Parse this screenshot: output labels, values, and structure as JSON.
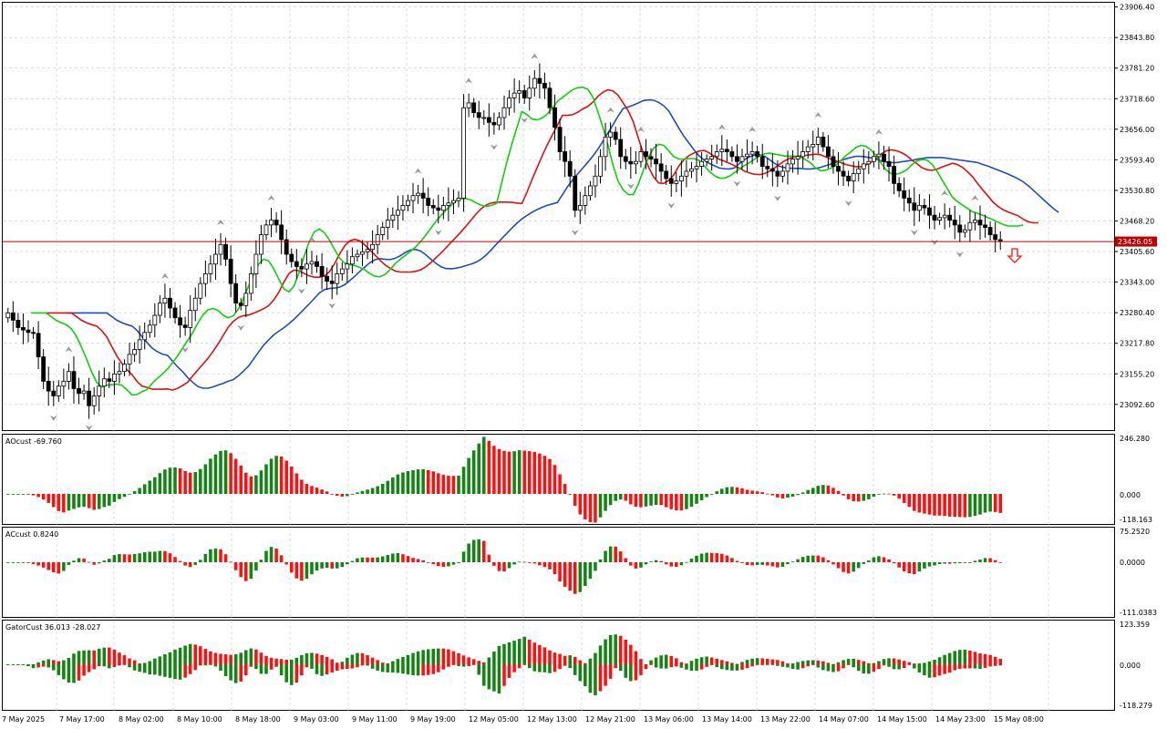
{
  "colors": {
    "background": "#ffffff",
    "grid": "#c8c8c8",
    "frame": "#000000",
    "bull_candle": "#ffffff",
    "bear_candle": "#000000",
    "alligator_jaw": "#1f4fbf",
    "alligator_teeth": "#e01010",
    "alligator_lips": "#10d010",
    "histogram_up": "#148414",
    "histogram_down": "#ff1010",
    "current_price_line": "#c00000",
    "current_price_tag": "#c00000",
    "fractal_marker": "#9a9a9a",
    "sell_arrow": "#ff2020"
  },
  "panels": {
    "main": {
      "type": "candlestick",
      "grid": true
    },
    "ao": {
      "label": "AOcust -69.760",
      "ticks": [
        "246.280",
        "0.000",
        "-118.163"
      ]
    },
    "ac": {
      "label": "ACcust 0.8240",
      "ticks": [
        "75.2520",
        "0.0000",
        "-111.0383"
      ]
    },
    "gator": {
      "label": "GatorCust 36.013 -28.027",
      "ticks": [
        "123.359",
        "0.000",
        "-118.279"
      ]
    }
  },
  "chart_data": {
    "type": "candlestick",
    "y_ticks": [
      "23906.40",
      "23843.80",
      "23781.20",
      "23718.60",
      "23656.00",
      "23593.40",
      "23530.80",
      "23468.20",
      "23405.60",
      "23343.00",
      "23280.40",
      "23217.80",
      "23155.20",
      "23092.60"
    ],
    "ylim": [
      23040,
      23915
    ],
    "current_price": 23426.05,
    "current_price_label": "23426.05",
    "x_tick_labels": [
      "7 May 2025",
      "7 May 17:00",
      "8 May 02:00",
      "8 May 10:00",
      "8 May 18:00",
      "9 May 03:00",
      "9 May 11:00",
      "9 May 19:00",
      "12 May 05:00",
      "12 May 13:00",
      "12 May 21:00",
      "13 May 06:00",
      "13 May 14:00",
      "13 May 22:00",
      "14 May 07:00",
      "14 May 15:00",
      "14 May 23:00",
      "15 May 08:00"
    ],
    "closes": [
      23280,
      23265,
      23250,
      23245,
      23240,
      23238,
      23190,
      23140,
      23120,
      23110,
      23130,
      23140,
      23160,
      23125,
      23115,
      23120,
      23090,
      23110,
      23130,
      23145,
      23140,
      23155,
      23160,
      23175,
      23195,
      23205,
      23225,
      23240,
      23255,
      23275,
      23300,
      23310,
      23290,
      23270,
      23255,
      23250,
      23285,
      23310,
      23340,
      23360,
      23380,
      23400,
      23420,
      23390,
      23340,
      23300,
      23295,
      23320,
      23360,
      23400,
      23440,
      23460,
      23470,
      23460,
      23430,
      23400,
      23385,
      23375,
      23370,
      23380,
      23385,
      23375,
      23355,
      23345,
      23340,
      23360,
      23370,
      23380,
      23395,
      23400,
      23405,
      23410,
      23420,
      23440,
      23455,
      23470,
      23480,
      23490,
      23500,
      23510,
      23520,
      23525,
      23515,
      23500,
      23495,
      23490,
      23500,
      23505,
      23510,
      23515,
      23700,
      23710,
      23690,
      23680,
      23680,
      23670,
      23665,
      23680,
      23700,
      23720,
      23730,
      23735,
      23720,
      23740,
      23760,
      23750,
      23740,
      23700,
      23660,
      23610,
      23590,
      23560,
      23490,
      23500,
      23520,
      23540,
      23560,
      23600,
      23640,
      23650,
      23635,
      23600,
      23590,
      23585,
      23590,
      23610,
      23600,
      23595,
      23585,
      23570,
      23555,
      23545,
      23550,
      23560,
      23570,
      23575,
      23580,
      23590,
      23595,
      23600,
      23610,
      23615,
      23610,
      23600,
      23590,
      23600,
      23605,
      23610,
      23600,
      23580,
      23575,
      23570,
      23560,
      23570,
      23585,
      23595,
      23600,
      23610,
      23620,
      23625,
      23640,
      23620,
      23600,
      23580,
      23570,
      23560,
      23550,
      23565,
      23575,
      23585,
      23590,
      23600,
      23605,
      23590,
      23580,
      23545,
      23530,
      23515,
      23505,
      23490,
      23500,
      23495,
      23480,
      23470,
      23475,
      23480,
      23470,
      23460,
      23445,
      23450,
      23465,
      23470,
      23460,
      23455,
      23440,
      23430,
      23426.05
    ]
  }
}
